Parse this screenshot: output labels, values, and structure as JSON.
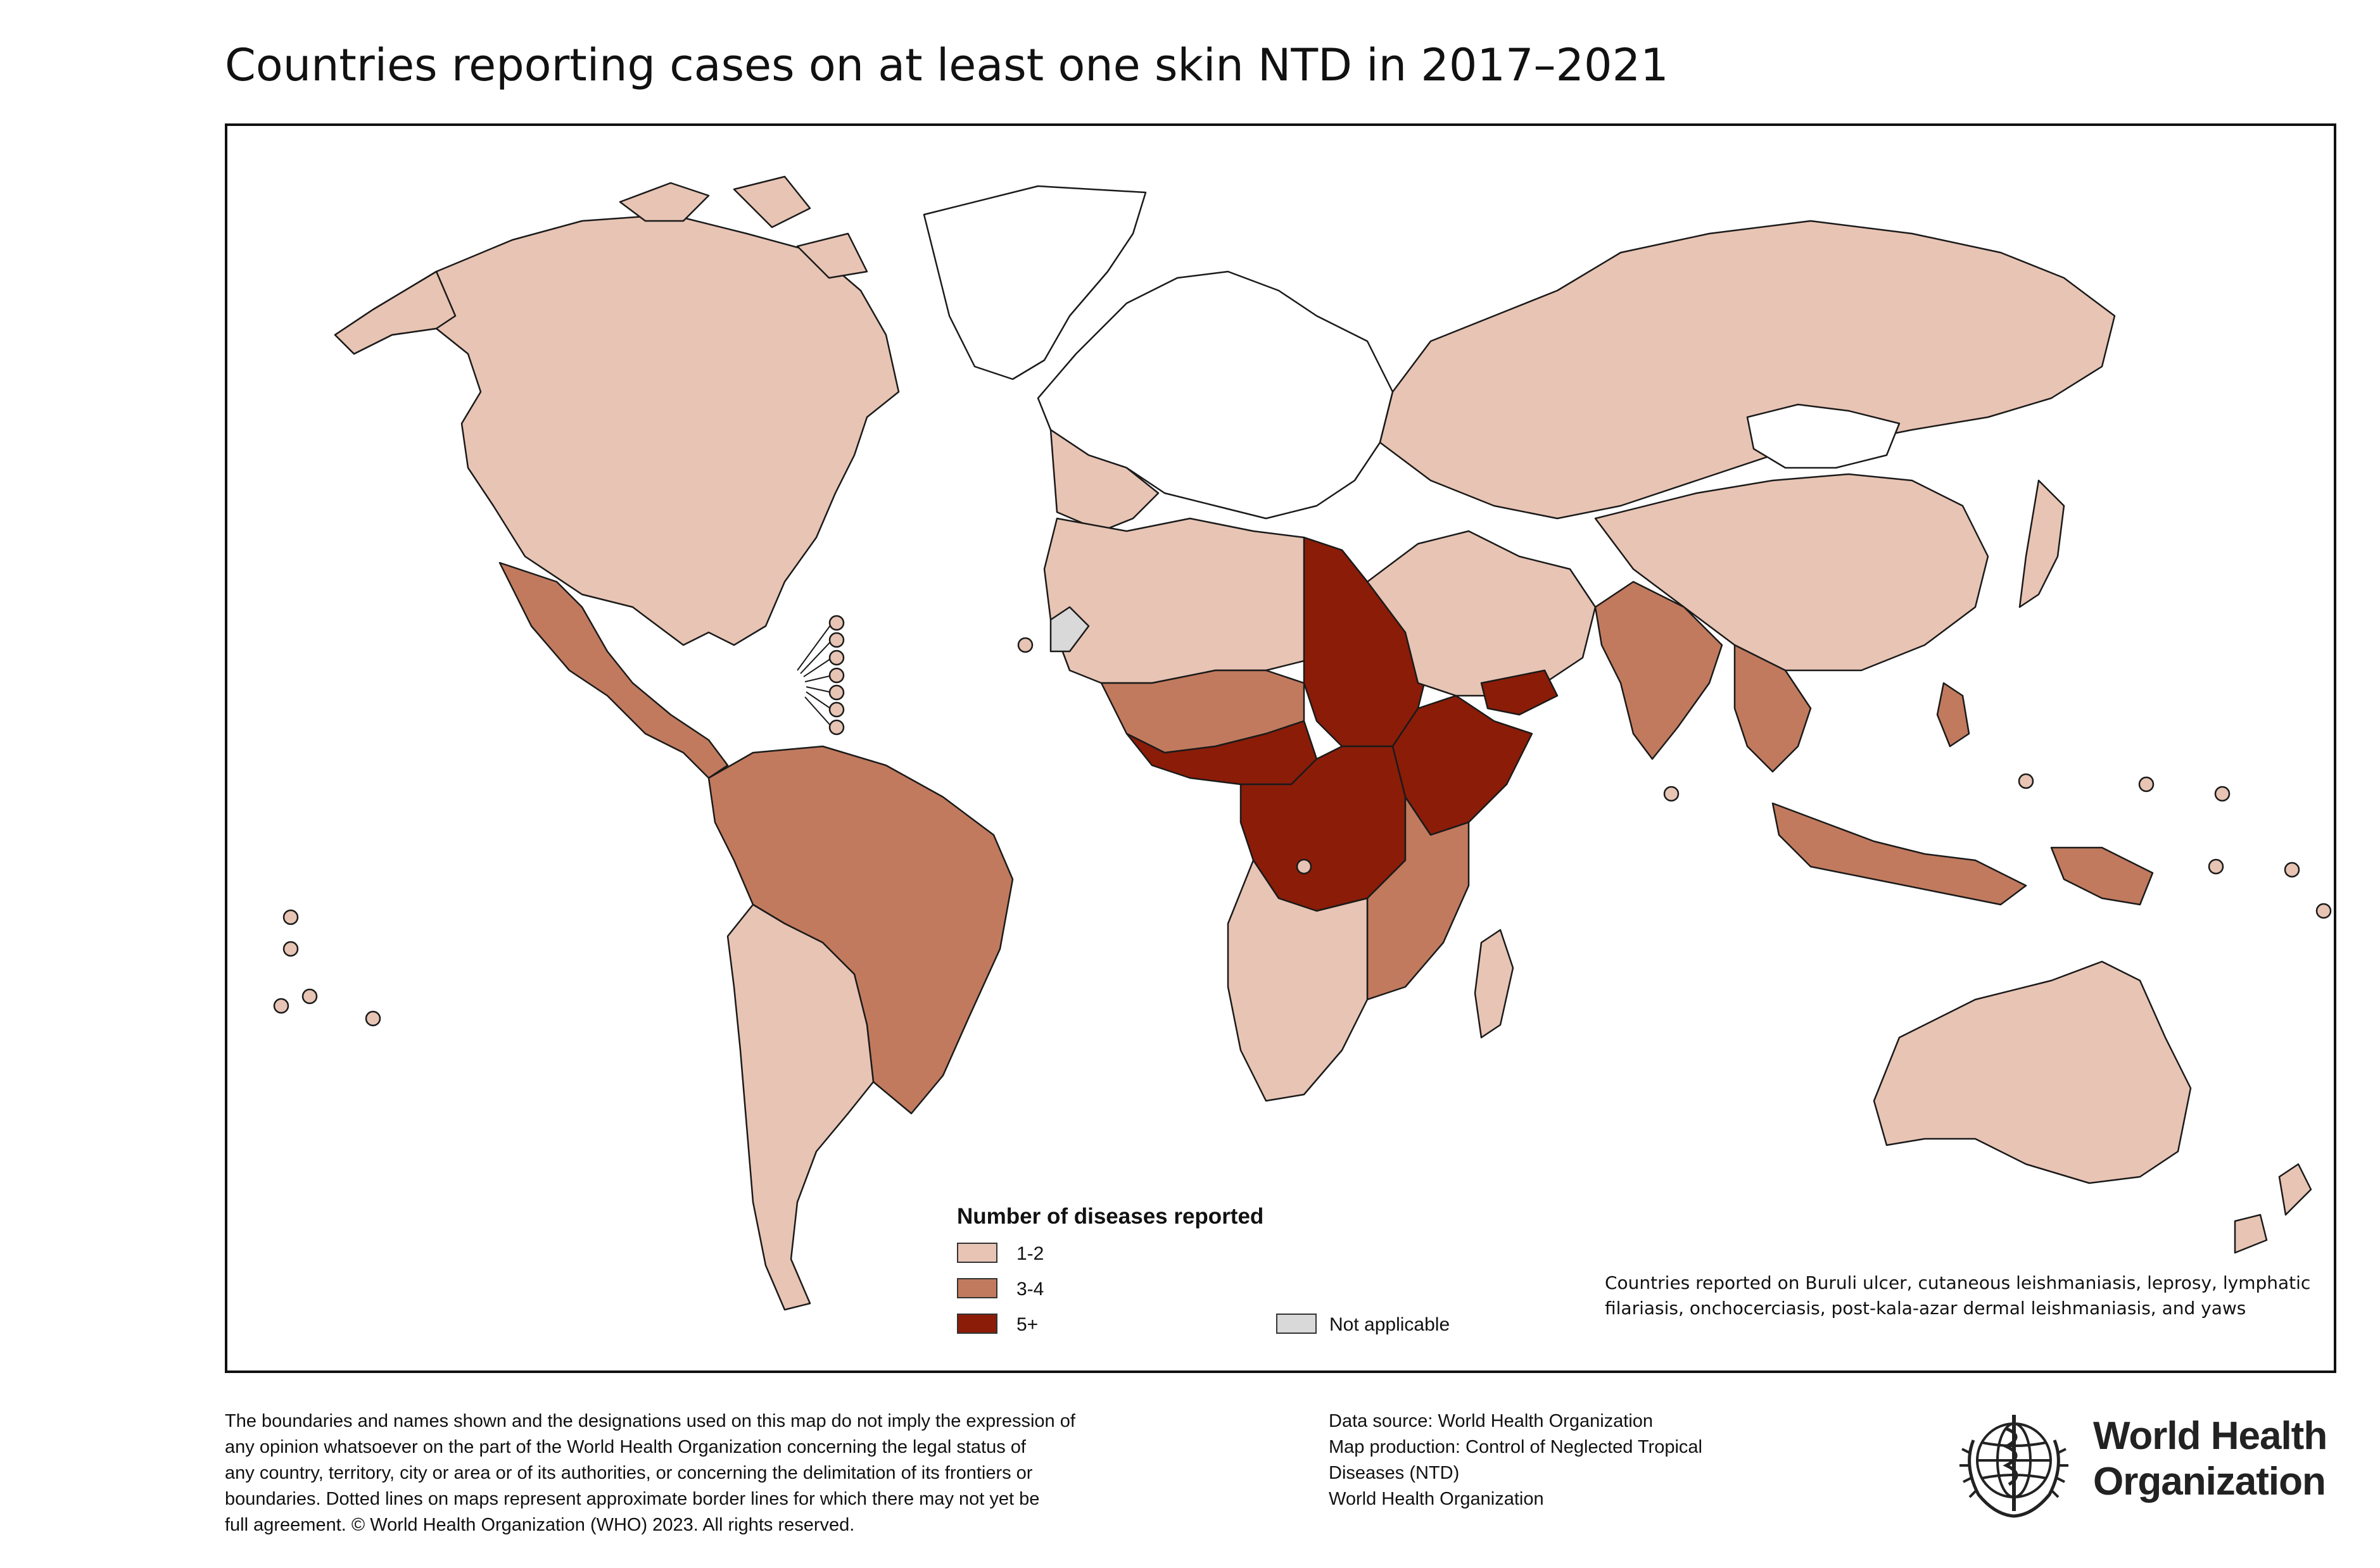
{
  "title": "Countries reporting cases on at least one skin NTD in 2017–2021",
  "legend": {
    "title": "Number of diseases reported",
    "items": [
      {
        "label": "1-2",
        "color": "#e8c4b4"
      },
      {
        "label": "3-4",
        "color": "#c17a5e"
      },
      {
        "label": "5+",
        "color": "#8b1c08"
      }
    ],
    "not_applicable": {
      "label": "Not applicable",
      "color": "#d9d9d9"
    },
    "no_data_color": "#ffffff"
  },
  "diseases_note": "Countries reported on Buruli ulcer, cutaneous leishmaniasis, leprosy, lymphatic filariasis, onchocerciasis, post-kala-azar dermal leishmaniasis, and yaws",
  "disclaimer": [
    "The boundaries and names shown and the designations used on this map do not imply the expression of",
    "any opinion whatsoever on the part of the World Health Organization concerning the legal status of",
    "any country, territory, city or area or of its authorities, or concerning the delimitation of its frontiers or",
    "boundaries. Dotted lines on maps represent approximate border lines for which there may not yet be",
    "full agreement. © World Health Organization (WHO) 2023. All rights reserved."
  ],
  "data_source": [
    "Data source: World Health Organization",
    "Map production: Control of Neglected Tropical",
    "Diseases (NTD)",
    "World Health Organization"
  ],
  "logo": {
    "line1": "World Health",
    "line2": "Organization",
    "icon": "who-emblem-icon"
  }
}
